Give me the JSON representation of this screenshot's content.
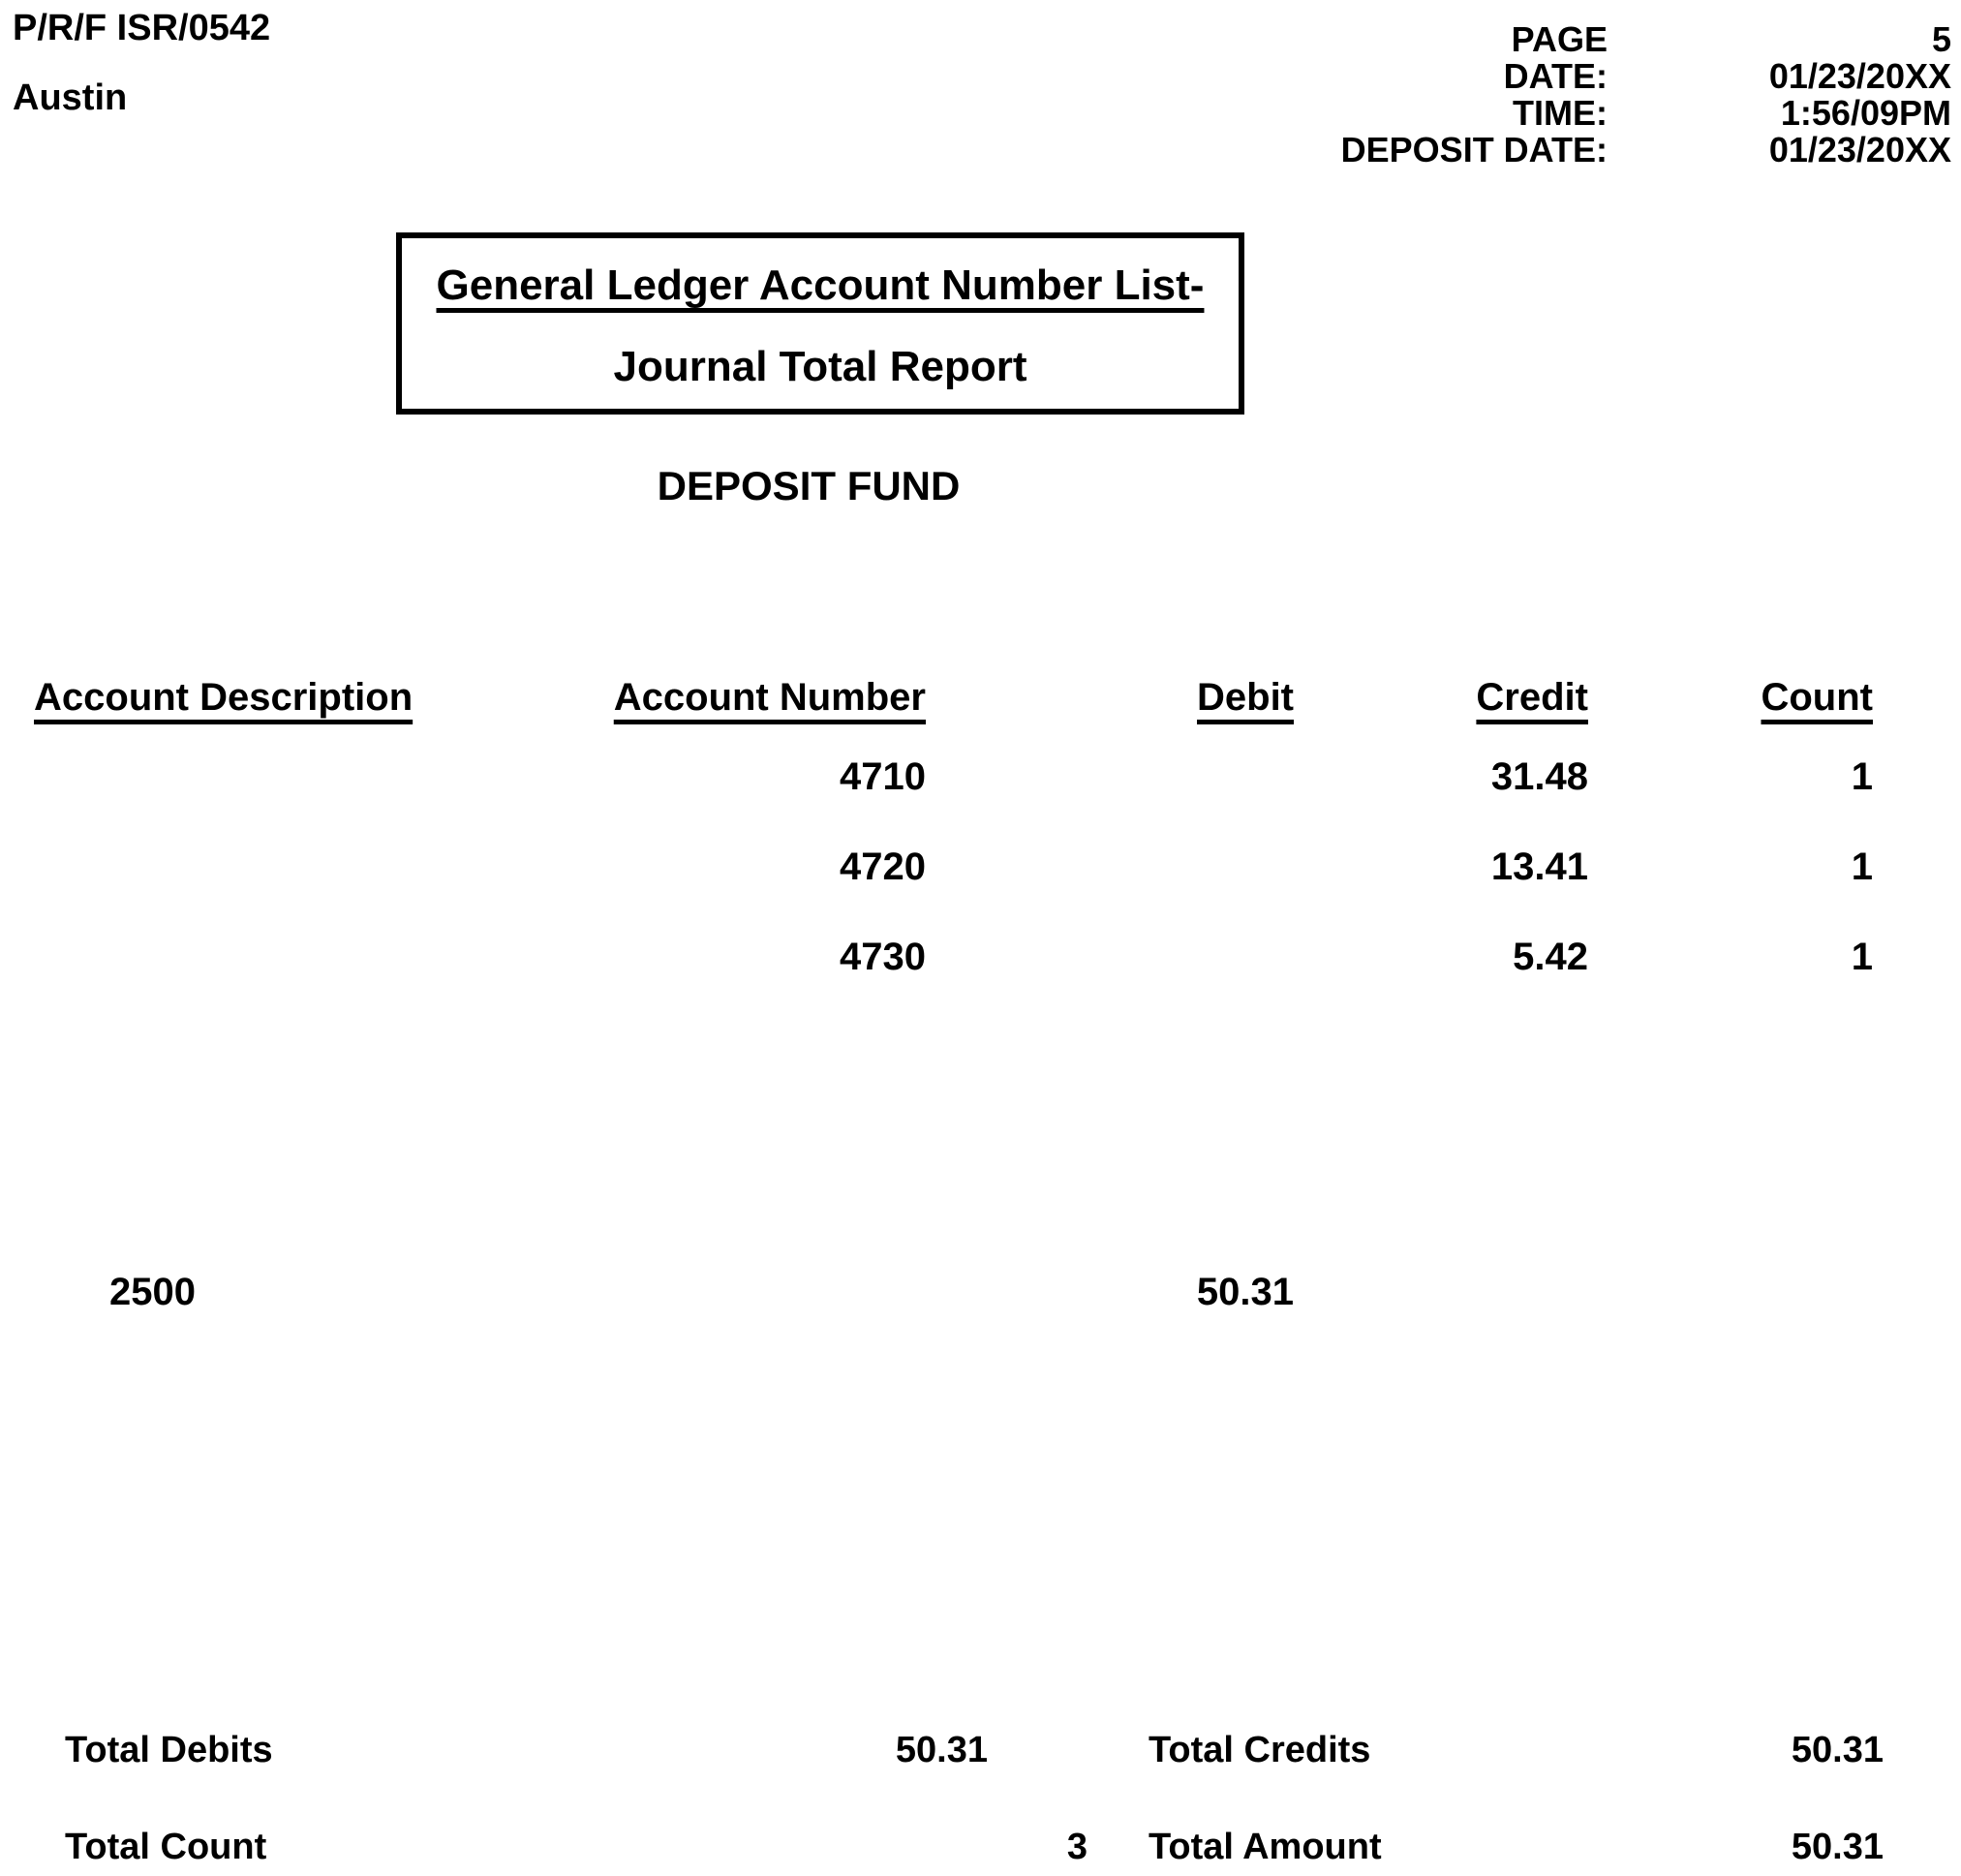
{
  "report": {
    "code": "P/R/F ISR/0542",
    "location": "Austin",
    "meta": {
      "rows": [
        {
          "label": "PAGE",
          "value": "5"
        },
        {
          "label": "DATE:",
          "value": "01/23/20XX"
        },
        {
          "label": "TIME:",
          "value": "1:56/09PM"
        },
        {
          "label": "DEPOSIT DATE:",
          "value": "01/23/20XX"
        }
      ]
    },
    "title_line1": "General Ledger Account Number List-",
    "title_line2": "Journal Total Report",
    "section": "DEPOSIT FUND"
  },
  "table": {
    "headers": [
      "Account Description",
      "Account Number",
      "Debit",
      "Credit",
      "Count"
    ],
    "rows": [
      {
        "account_number": "4710",
        "credit": "31.48",
        "count": "1"
      },
      {
        "account_number": "4720",
        "credit": "13.41",
        "count": "1"
      },
      {
        "account_number": "4730",
        "credit": "5.42",
        "count": "1"
      }
    ],
    "offset_row": {
      "account_description": "2500",
      "debit": "50.31"
    }
  },
  "totals": {
    "debits_label": "Total Debits",
    "debits_value": "50.31",
    "credits_label": "Total Credits",
    "credits_value": "50.31",
    "count_label": "Total Count",
    "count_value": "3",
    "amount_label": "Total Amount",
    "amount_value": "50.31"
  },
  "colors": {
    "text": "#000000",
    "background": "#ffffff"
  }
}
